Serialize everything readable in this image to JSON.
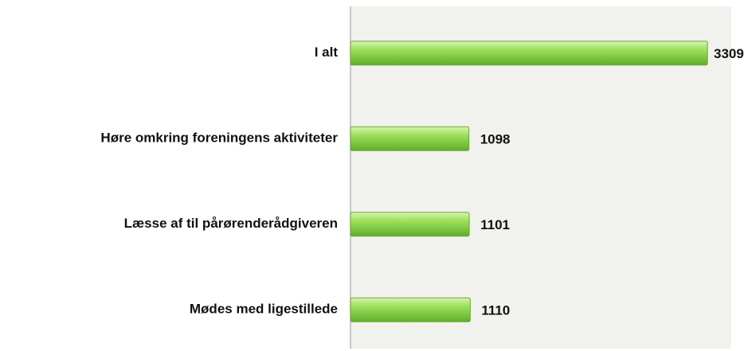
{
  "chart_data": {
    "type": "bar",
    "orientation": "horizontal",
    "categories": [
      "I alt",
      "Høre omkring foreningens aktiviteter",
      "Læsse af til pårørenderådgiveren",
      "Mødes med ligestillede"
    ],
    "values": [
      3309,
      1098,
      1101,
      1110
    ],
    "color": "#8fd14f",
    "xlim": [
      0,
      3500
    ]
  }
}
